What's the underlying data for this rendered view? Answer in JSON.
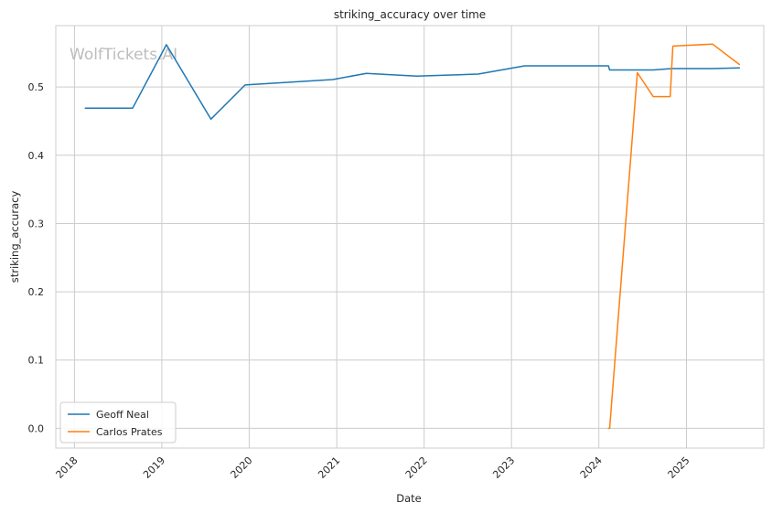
{
  "chart_data": {
    "type": "line",
    "title": "striking_accuracy over time",
    "xlabel": "Date",
    "ylabel": "striking_accuracy",
    "watermark": "WolfTickets.AI",
    "xlim": [
      "2017-10-15",
      "2025-11-20"
    ],
    "ylim": [
      -0.029,
      0.59
    ],
    "x_ticks": [
      "2018",
      "2019",
      "2020",
      "2021",
      "2022",
      "2023",
      "2024",
      "2025"
    ],
    "y_ticks": [
      "0.0",
      "0.1",
      "0.2",
      "0.3",
      "0.4",
      "0.5"
    ],
    "grid": true,
    "legend_position": "lower-left",
    "series": [
      {
        "name": "Geoff Neal",
        "color": "#1f77b4",
        "points": [
          [
            "2018-02-15",
            0.469
          ],
          [
            "2018-09-01",
            0.469
          ],
          [
            "2019-01-20",
            0.562
          ],
          [
            "2019-07-25",
            0.453
          ],
          [
            "2019-12-15",
            0.503
          ],
          [
            "2020-12-15",
            0.511
          ],
          [
            "2021-05-05",
            0.52
          ],
          [
            "2021-12-01",
            0.516
          ],
          [
            "2022-08-15",
            0.519
          ],
          [
            "2023-02-25",
            0.531
          ],
          [
            "2024-02-10",
            0.531
          ],
          [
            "2024-02-15",
            0.525
          ],
          [
            "2024-08-15",
            0.525
          ],
          [
            "2024-11-01",
            0.527
          ],
          [
            "2025-04-15",
            0.527
          ],
          [
            "2025-08-10",
            0.528
          ]
        ]
      },
      {
        "name": "Carlos Prates",
        "color": "#ff7f0e",
        "points": [
          [
            "2024-02-10",
            0.0
          ],
          [
            "2024-02-15",
            0.0
          ],
          [
            "2024-06-10",
            0.521
          ],
          [
            "2024-08-15",
            0.486
          ],
          [
            "2024-10-25",
            0.486
          ],
          [
            "2024-11-05",
            0.56
          ],
          [
            "2025-04-20",
            0.563
          ],
          [
            "2025-08-10",
            0.533
          ]
        ]
      }
    ]
  }
}
